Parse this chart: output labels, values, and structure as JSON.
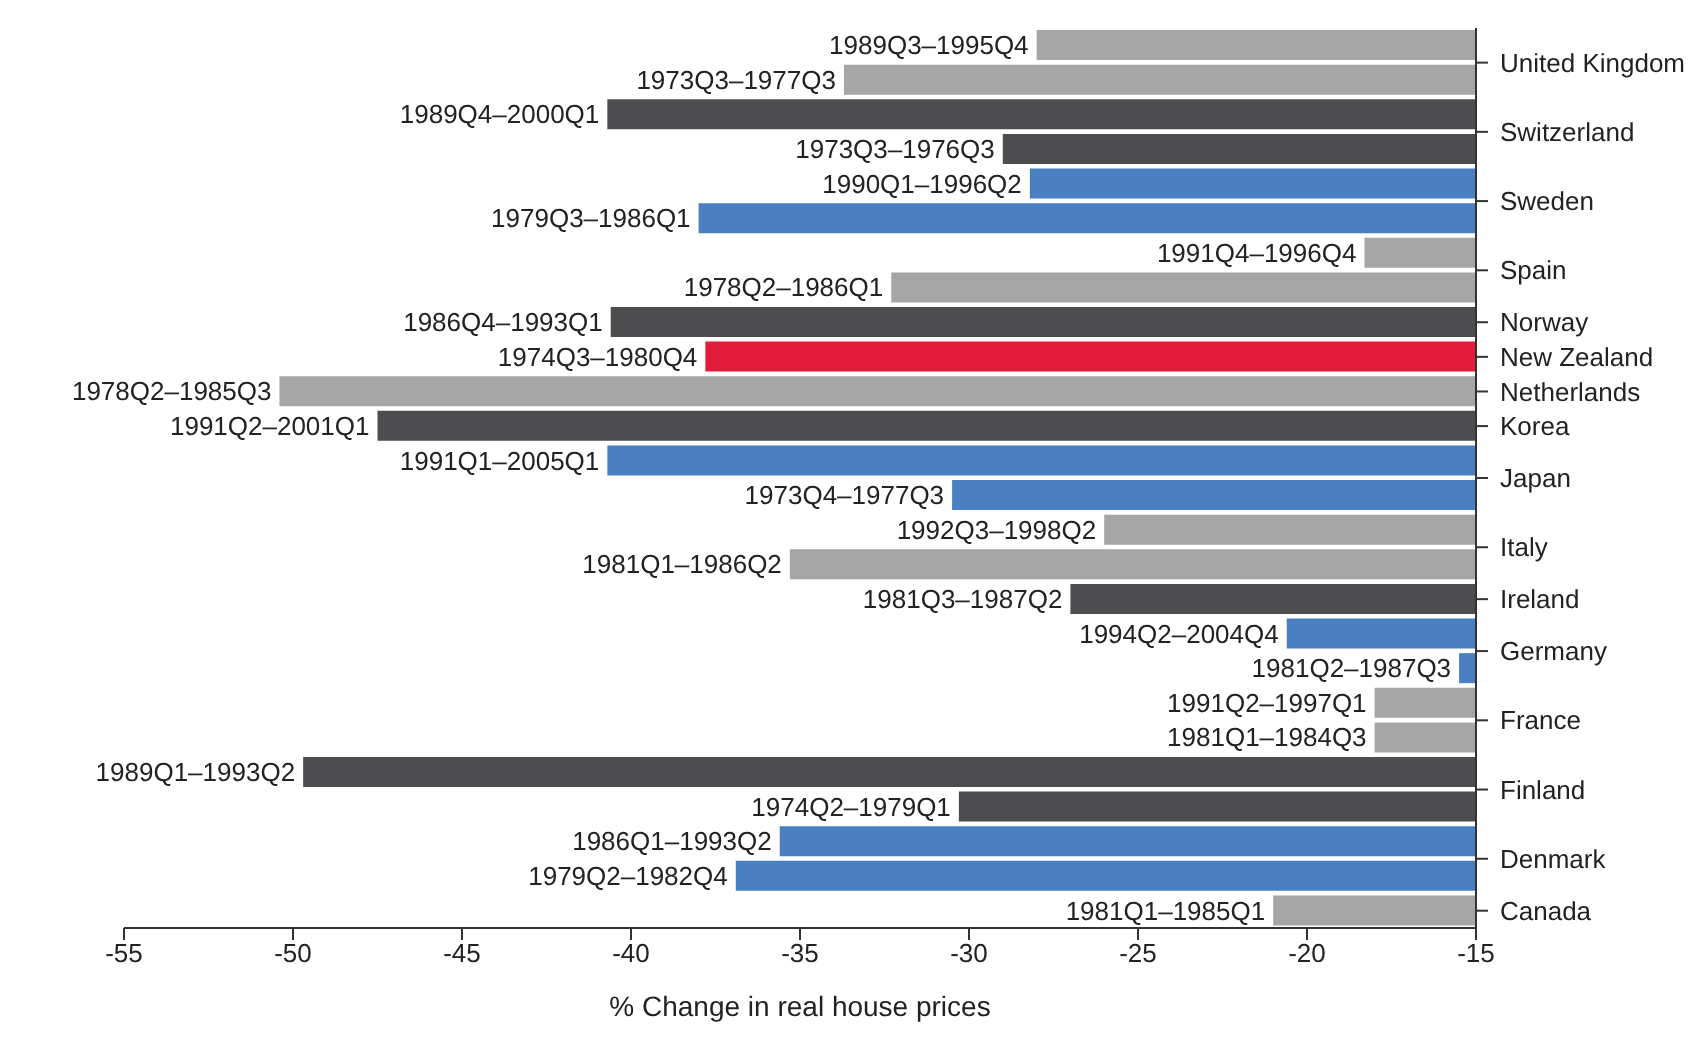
{
  "chart_data": {
    "type": "bar",
    "orientation": "horizontal",
    "xlabel": "% Change in real house prices",
    "categories": [
      "United Kingdom",
      null,
      "Switzerland",
      null,
      "Sweden",
      null,
      "Spain",
      null,
      "Norway",
      "New Zealand",
      "Netherlands",
      "Korea",
      "Japan",
      null,
      "Italy",
      null,
      "Ireland",
      "Germany",
      null,
      "France",
      null,
      "Finland",
      null,
      "Denmark",
      null,
      "Canada"
    ],
    "values": [
      -28,
      -33.7,
      -40.7,
      -29,
      -28.2,
      -38,
      -18.3,
      -32.3,
      -40.6,
      -37.8,
      -50.4,
      -47.5,
      -40.7,
      -30.5,
      -26,
      -35.3,
      -27,
      -20.6,
      -15.5,
      -18,
      -18,
      -49.7,
      -30.3,
      -35.6,
      -36.9,
      -21
    ],
    "annotations": [
      "1989Q3–1995Q4",
      "1973Q3–1977Q3",
      "1989Q4–2000Q1",
      "1973Q3–1976Q3",
      "1990Q1–1996Q2",
      "1979Q3–1986Q1",
      "1991Q4–1996Q4",
      "1978Q2–1986Q1",
      "1986Q4–1993Q1",
      "1974Q3–1980Q4",
      "1978Q2–1985Q3",
      "1991Q2–2001Q1",
      "1991Q1–2005Q1",
      "1973Q4–1977Q3",
      "1992Q3–1998Q2",
      "1981Q1–1986Q2",
      "1981Q3–1987Q2",
      "1994Q2–2004Q4",
      "1981Q2–1987Q3",
      "1991Q2–1997Q1",
      "1981Q1–1984Q3",
      "1989Q1–1993Q2",
      "1974Q2–1979Q1",
      "1986Q1–1993Q2",
      "1979Q2–1982Q4",
      "1981Q1–1985Q1"
    ],
    "colors": [
      "#a6a6a6",
      "#a6a6a6",
      "#4d4d4f",
      "#4d4d4f",
      "#4a7fc1",
      "#4a7fc1",
      "#a6a6a6",
      "#a6a6a6",
      "#4d4d4f",
      "#e31b3a",
      "#a6a6a6",
      "#4d4d4f",
      "#4a7fc1",
      "#4a7fc1",
      "#a6a6a6",
      "#a6a6a6",
      "#4d4d4f",
      "#4a7fc1",
      "#4a7fc1",
      "#a6a6a6",
      "#a6a6a6",
      "#4d4d4f",
      "#4d4d4f",
      "#4a7fc1",
      "#4a7fc1",
      "#a6a6a6"
    ],
    "xlim": [
      -55,
      -15
    ],
    "xticks": [
      -55,
      -50,
      -45,
      -40,
      -35,
      -30,
      -25,
      -20,
      -15
    ],
    "grid": false,
    "legend": false
  }
}
